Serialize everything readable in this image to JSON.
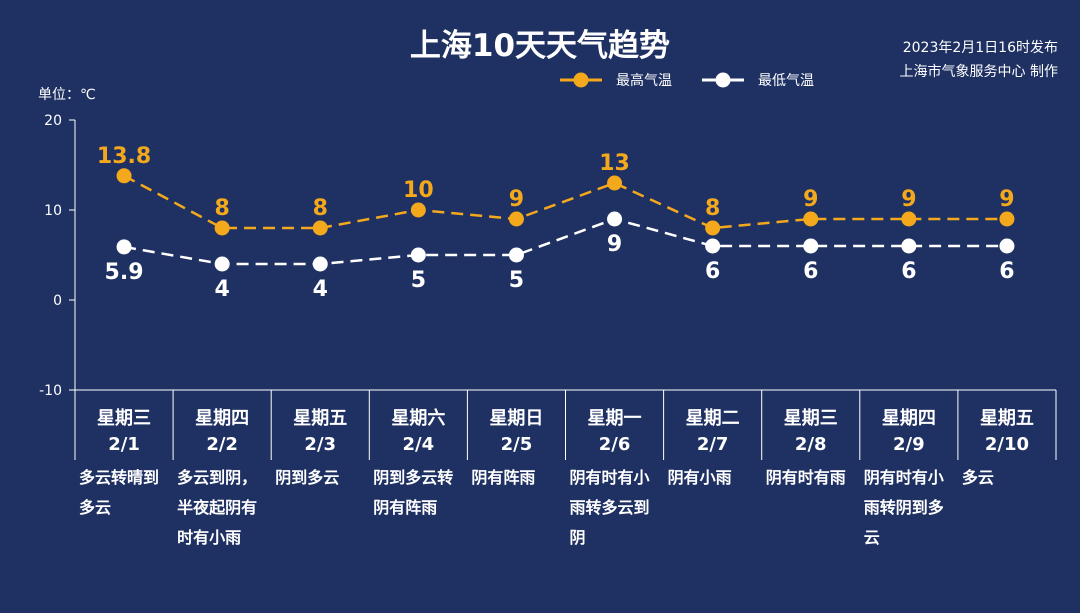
{
  "title": "上海10天天气趋势",
  "issued_time": "2023年2月1日16时发布",
  "issuer": "上海市气象服务中心 制作",
  "unit_label": "单位：℃",
  "colors": {
    "background": "#1f3163",
    "high": "#f4a81c",
    "low": "#ffffff",
    "axis": "#ffffff"
  },
  "chart_data": {
    "type": "line",
    "title": "上海10天天气趋势",
    "ylabel": "单位：℃",
    "ylim": [
      -10,
      20
    ],
    "yticks": [
      -10,
      0,
      10,
      20
    ],
    "grid": false,
    "legend_position": "top-right",
    "categories": [
      "星期三",
      "星期四",
      "星期五",
      "星期六",
      "星期日",
      "星期一",
      "星期二",
      "星期三",
      "星期四",
      "星期五"
    ],
    "dates": [
      "2/1",
      "2/2",
      "2/3",
      "2/4",
      "2/5",
      "2/6",
      "2/7",
      "2/8",
      "2/9",
      "2/10"
    ],
    "weather": [
      "多云转晴到多云",
      "多云到阴，半夜起阴有时有小雨",
      "阴到多云",
      "阴到多云转阴有阵雨",
      "阴有阵雨",
      "阴有时有小雨转多云到阴",
      "阴有小雨",
      "阴有时有雨",
      "阴有时有小雨转阴到多云",
      "多云"
    ],
    "series": [
      {
        "name": "最高气温",
        "values": [
          13.8,
          8,
          8,
          10,
          9,
          13,
          8,
          9,
          9,
          9
        ],
        "color": "#f4a81c"
      },
      {
        "name": "最低气温",
        "values": [
          5.9,
          4,
          4,
          5,
          5,
          9,
          6,
          6,
          6,
          6
        ],
        "color": "#ffffff"
      }
    ]
  }
}
